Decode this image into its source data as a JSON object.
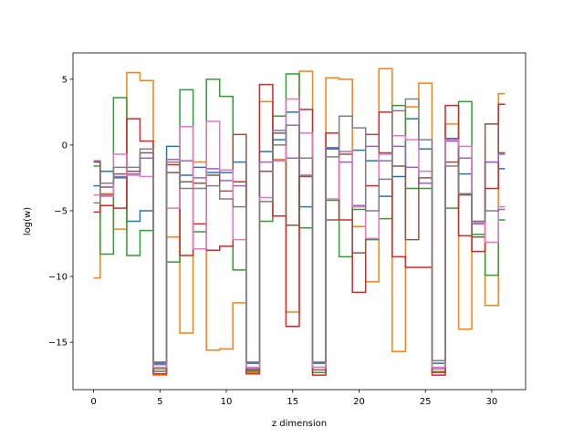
{
  "chart_data": {
    "type": "line",
    "drawstyle": "steps-mid",
    "title": "",
    "xlabel": "z dimension",
    "ylabel": "log(w)",
    "xlim": [
      -1.55,
      32.55
    ],
    "ylim": [
      -18.6,
      7.0
    ],
    "xticks": [
      0,
      5,
      10,
      15,
      20,
      25,
      30
    ],
    "yticks": [
      -15,
      -10,
      -5,
      0,
      5
    ],
    "grid": false,
    "x": [
      0,
      1,
      2,
      3,
      4,
      5,
      6,
      7,
      8,
      9,
      10,
      11,
      12,
      13,
      14,
      15,
      16,
      17,
      18,
      19,
      20,
      21,
      22,
      23,
      24,
      25,
      26,
      27,
      28,
      29,
      30,
      31
    ],
    "series": [
      {
        "color": "#1f77b4",
        "values": [
          -3.1,
          -2.0,
          -2.5,
          -5.8,
          -5.0,
          -16.6,
          -0.1,
          -2.3,
          -1.7,
          -2.1,
          -2.1,
          -1.3,
          -16.6,
          -0.5,
          0.4,
          2.5,
          -4.7,
          -16.6,
          -0.3,
          -0.5,
          -0.4,
          -1.2,
          -3.9,
          -2.4,
          2.0,
          -0.3,
          -16.6,
          0.5,
          -2.2,
          -5.8,
          -1.3,
          -1.8
        ]
      },
      {
        "color": "#ff7f0e",
        "values": [
          -10.1,
          -3.7,
          -6.4,
          5.5,
          4.9,
          -17.5,
          -7.0,
          -14.3,
          -1.3,
          -15.6,
          -15.5,
          -12.0,
          -17.3,
          3.3,
          -1.1,
          -12.7,
          5.6,
          -17.3,
          5.1,
          5.0,
          -6.2,
          -10.4,
          5.8,
          -15.7,
          2.9,
          4.7,
          -17.2,
          1.6,
          -14.0,
          -7.0,
          -12.2,
          3.9
        ]
      },
      {
        "color": "#2ca02c",
        "values": [
          -1.6,
          -8.3,
          3.6,
          -8.4,
          -6.5,
          -17.0,
          -8.9,
          4.2,
          -6.6,
          5.0,
          3.7,
          -9.5,
          -17.2,
          -5.8,
          2.2,
          5.4,
          -6.3,
          -17.3,
          -4.2,
          -8.5,
          -4.9,
          -7.2,
          -5.6,
          3.0,
          -3.3,
          -3.3,
          -17.3,
          -4.8,
          3.3,
          -6.8,
          -9.9,
          -5.7
        ]
      },
      {
        "color": "#d62728",
        "values": [
          -5.1,
          -4.6,
          -4.8,
          2.0,
          0.3,
          -17.4,
          -1.5,
          -8.4,
          -6.0,
          -8.0,
          -7.7,
          -2.8,
          -17.4,
          4.6,
          -5.4,
          -13.8,
          2.7,
          -17.5,
          0.9,
          -5.7,
          -11.2,
          -3.1,
          2.5,
          -8.5,
          -9.3,
          -9.3,
          -17.5,
          3.0,
          -6.9,
          -8.1,
          -3.3,
          3.1
        ]
      },
      {
        "color": "#9467bd",
        "values": [
          -1.2,
          -3.8,
          -2.4,
          -2.2,
          -1.0,
          -16.7,
          -1.1,
          -1.2,
          -2.5,
          -1.8,
          -2.7,
          -3.1,
          -17.0,
          -1.3,
          1.1,
          -1.0,
          -2.3,
          -16.9,
          -0.2,
          -1.3,
          -4.6,
          -0.1,
          -1.2,
          -0.1,
          -1.7,
          -2.9,
          -17.0,
          0.3,
          -1.0,
          -6.0,
          -1.3,
          -0.7
        ]
      },
      {
        "color": "#8c564b",
        "values": [
          -1.3,
          -3.2,
          -2.2,
          -2.0,
          -0.6,
          -17.2,
          -2.1,
          -2.8,
          -2.9,
          -2.3,
          -3.5,
          0.8,
          -17.1,
          -2.0,
          0.9,
          -6.1,
          -2.4,
          -17.1,
          -5.7,
          -0.7,
          -8.2,
          0.8,
          -0.6,
          -1.6,
          -7.2,
          -2.5,
          -17.3,
          -1.3,
          -3.8,
          -7.0,
          1.6,
          -0.6
        ]
      },
      {
        "color": "#e377c2",
        "values": [
          -3.8,
          -3.9,
          -0.7,
          -2.3,
          -2.4,
          -16.9,
          -4.8,
          1.4,
          -7.9,
          1.8,
          -1.9,
          -7.2,
          -16.9,
          -4.0,
          -1.2,
          3.5,
          0.9,
          -16.9,
          -4.1,
          -0.5,
          -4.7,
          -7.1,
          -0.7,
          0.7,
          0.4,
          -2.0,
          -16.9,
          0.4,
          -0.1,
          -5.9,
          -7.4,
          -4.7
        ]
      },
      {
        "color": "#7f7f7f",
        "values": [
          -4.4,
          -2.9,
          -1.7,
          -1.7,
          -0.3,
          -16.5,
          -1.3,
          -3.3,
          -3.3,
          -3.1,
          -4.1,
          -4.7,
          -16.5,
          -4.3,
          0.0,
          1.5,
          -1.0,
          -16.5,
          -0.9,
          2.2,
          1.3,
          -5.0,
          -2.6,
          2.6,
          3.5,
          0.4,
          -16.4,
          -1.6,
          -3.7,
          -5.8,
          -5.0,
          -4.9
        ]
      }
    ]
  }
}
